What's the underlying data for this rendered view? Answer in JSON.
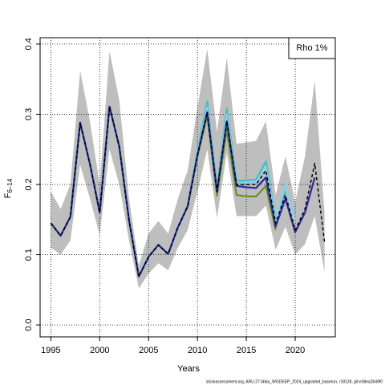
{
  "chart_data": {
    "type": "line",
    "xlabel": "Years",
    "ylabel": "F",
    "ylabel_sub": "6–14",
    "legend_text": "Rho 1%",
    "footnote": "stockassessment.org, ARU.27.5b6a_WGDEEP_2024_upgraded_baserun, r18128, git:e38ea2b49f0",
    "grid": true,
    "xlim": [
      1993.9,
      2024.1
    ],
    "ylim": [
      -0.017,
      0.409
    ],
    "xticks": [
      1995,
      2000,
      2005,
      2010,
      2015,
      2020
    ],
    "yticks": [
      {
        "value": 0,
        "label": "0.0"
      },
      0.1,
      0.2,
      0.3,
      0.4
    ],
    "x": [
      1995,
      1996,
      1997,
      1998,
      1999,
      2000,
      2001,
      2002,
      2003,
      2004,
      2005,
      2006,
      2007,
      2008,
      2009,
      2010,
      2011,
      2012,
      2013,
      2014,
      2015,
      2016,
      2017,
      2018,
      2019,
      2020,
      2021,
      2022,
      2023
    ],
    "band": {
      "color": "#bebebe",
      "lower": [
        0.11,
        0.1,
        0.12,
        0.228,
        0.18,
        0.128,
        0.25,
        0.2,
        0.12,
        0.052,
        0.073,
        0.088,
        0.078,
        0.11,
        0.135,
        0.19,
        0.25,
        0.152,
        0.245,
        0.155,
        0.155,
        0.155,
        0.17,
        0.107,
        0.14,
        0.1,
        0.115,
        0.155,
        0.075
      ],
      "upper": [
        0.19,
        0.165,
        0.2,
        0.362,
        0.29,
        0.2,
        0.39,
        0.32,
        0.18,
        0.085,
        0.13,
        0.148,
        0.13,
        0.18,
        0.22,
        0.31,
        0.393,
        0.275,
        0.38,
        0.258,
        0.26,
        0.262,
        0.29,
        0.185,
        0.24,
        0.175,
        0.24,
        0.348,
        0.16
      ]
    },
    "series": [
      {
        "color": "#6b8e23",
        "values": [
          0.145,
          0.127,
          0.154,
          0.288,
          0.229,
          0.16,
          0.311,
          0.254,
          0.149,
          0.069,
          0.097,
          0.114,
          0.101,
          0.139,
          0.169,
          0.24,
          0.298,
          0.184,
          0.278,
          0.185,
          0.183,
          0.183,
          0.198,
          0.135,
          null,
          null,
          null,
          null,
          null
        ]
      },
      {
        "color": "#40c0c0",
        "values": [
          0.145,
          0.127,
          0.154,
          0.288,
          0.229,
          0.16,
          0.311,
          0.254,
          0.149,
          0.069,
          0.097,
          0.114,
          0.101,
          0.139,
          0.169,
          0.248,
          0.318,
          0.195,
          0.308,
          0.205,
          0.206,
          0.207,
          0.233,
          0.15,
          0.19,
          null,
          null,
          null,
          null
        ]
      },
      {
        "color": "#87ceeb",
        "values": [
          0.145,
          0.127,
          0.154,
          0.288,
          0.229,
          0.16,
          0.311,
          0.254,
          0.149,
          0.069,
          0.097,
          0.114,
          0.101,
          0.139,
          0.169,
          0.245,
          0.31,
          0.192,
          0.3,
          0.202,
          0.203,
          0.203,
          0.225,
          0.148,
          0.2,
          0.15,
          null,
          null,
          null
        ]
      },
      {
        "color": "#2a2a9a",
        "values": [
          0.145,
          0.127,
          0.154,
          0.288,
          0.229,
          0.16,
          0.311,
          0.254,
          0.149,
          0.069,
          0.097,
          0.114,
          0.101,
          0.139,
          0.169,
          0.242,
          0.303,
          0.19,
          0.29,
          0.198,
          0.196,
          0.195,
          0.21,
          0.14,
          0.18,
          0.132,
          0.16,
          0.21,
          null
        ]
      },
      {
        "color": "#000000",
        "dashed": true,
        "values": [
          0.145,
          0.127,
          0.154,
          0.288,
          0.229,
          0.16,
          0.311,
          0.254,
          0.149,
          0.069,
          0.097,
          0.114,
          0.101,
          0.139,
          0.169,
          0.242,
          0.303,
          0.19,
          0.29,
          0.2,
          0.2,
          0.2,
          0.22,
          0.145,
          0.185,
          0.135,
          0.165,
          0.23,
          0.118
        ]
      }
    ]
  }
}
